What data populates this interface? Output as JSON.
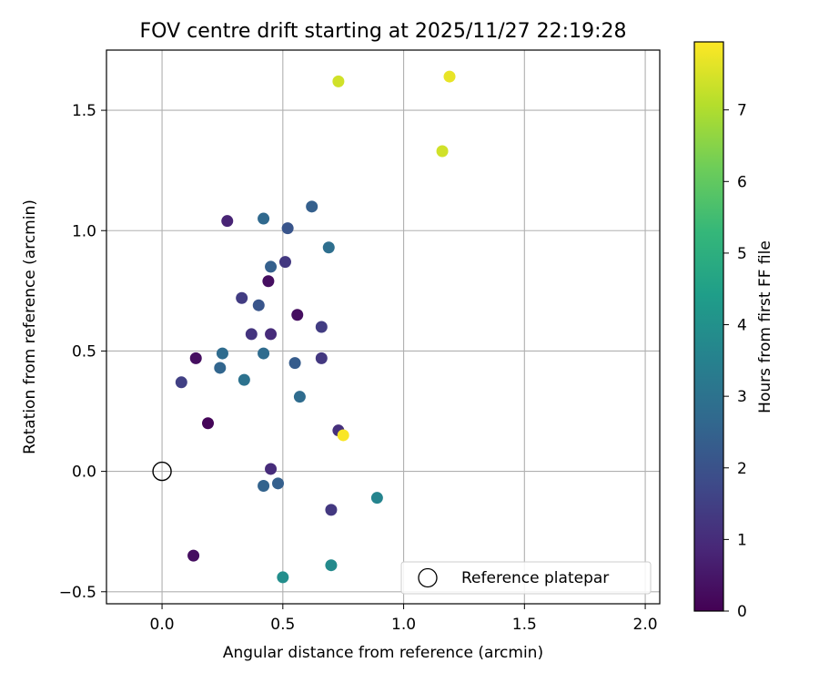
{
  "chart_data": {
    "type": "scatter",
    "title": "FOV centre drift starting at 2025/11/27 22:19:28",
    "xlabel": "Angular distance from reference (arcmin)",
    "ylabel": "Rotation from reference (arcmin)",
    "xlim": [
      -0.23,
      2.06
    ],
    "ylim": [
      -0.55,
      1.75
    ],
    "xticks": [
      0.0,
      0.5,
      1.0,
      1.5,
      2.0
    ],
    "xtick_labels": [
      "0.0",
      "0.5",
      "1.0",
      "1.5",
      "2.0"
    ],
    "yticks": [
      -0.5,
      0.0,
      0.5,
      1.0,
      1.5
    ],
    "ytick_labels": [
      "−0.5",
      "0.0",
      "0.5",
      "1.0",
      "1.5"
    ],
    "grid": true,
    "colorbar": {
      "label": "Hours from first FF file",
      "range": [
        0,
        7.95
      ],
      "ticks": [
        0,
        1,
        2,
        3,
        4,
        5,
        6,
        7
      ],
      "tick_labels": [
        "0",
        "1",
        "2",
        "3",
        "4",
        "5",
        "6",
        "7"
      ],
      "colormap": "viridis"
    },
    "legend": {
      "position": "lower-right",
      "entries": [
        {
          "label": "Reference platepar",
          "marker": "open-circle"
        }
      ]
    },
    "reference_point": {
      "x": 0.0,
      "y": 0.0
    },
    "points": [
      {
        "x": 0.73,
        "y": 1.62,
        "hours": 7.4
      },
      {
        "x": 1.19,
        "y": 1.64,
        "hours": 7.7
      },
      {
        "x": 1.16,
        "y": 1.33,
        "hours": 7.4
      },
      {
        "x": 0.27,
        "y": 1.04,
        "hours": 0.8
      },
      {
        "x": 0.42,
        "y": 1.05,
        "hours": 2.7
      },
      {
        "x": 0.52,
        "y": 1.01,
        "hours": 2.1
      },
      {
        "x": 0.62,
        "y": 1.1,
        "hours": 2.4
      },
      {
        "x": 0.69,
        "y": 0.93,
        "hours": 2.9
      },
      {
        "x": 0.45,
        "y": 0.85,
        "hours": 2.4
      },
      {
        "x": 0.51,
        "y": 0.87,
        "hours": 1.3
      },
      {
        "x": 0.33,
        "y": 0.72,
        "hours": 1.4
      },
      {
        "x": 0.4,
        "y": 0.69,
        "hours": 2.1
      },
      {
        "x": 0.44,
        "y": 0.79,
        "hours": 0.3
      },
      {
        "x": 0.56,
        "y": 0.65,
        "hours": 0.3
      },
      {
        "x": 0.66,
        "y": 0.6,
        "hours": 1.4
      },
      {
        "x": 0.37,
        "y": 0.57,
        "hours": 1.2
      },
      {
        "x": 0.45,
        "y": 0.57,
        "hours": 1.0
      },
      {
        "x": 0.14,
        "y": 0.47,
        "hours": 0.3
      },
      {
        "x": 0.25,
        "y": 0.49,
        "hours": 2.8
      },
      {
        "x": 0.42,
        "y": 0.49,
        "hours": 2.8
      },
      {
        "x": 0.55,
        "y": 0.45,
        "hours": 2.3
      },
      {
        "x": 0.66,
        "y": 0.47,
        "hours": 1.3
      },
      {
        "x": 0.08,
        "y": 0.37,
        "hours": 1.5
      },
      {
        "x": 0.24,
        "y": 0.43,
        "hours": 2.6
      },
      {
        "x": 0.34,
        "y": 0.38,
        "hours": 3.0
      },
      {
        "x": 0.57,
        "y": 0.31,
        "hours": 2.8
      },
      {
        "x": 0.19,
        "y": 0.2,
        "hours": 0.1
      },
      {
        "x": 0.73,
        "y": 0.17,
        "hours": 1.1
      },
      {
        "x": 0.75,
        "y": 0.15,
        "hours": 7.9
      },
      {
        "x": 0.45,
        "y": 0.01,
        "hours": 1.0
      },
      {
        "x": 0.48,
        "y": -0.05,
        "hours": 2.4
      },
      {
        "x": 0.42,
        "y": -0.06,
        "hours": 2.5
      },
      {
        "x": 0.7,
        "y": -0.16,
        "hours": 1.3
      },
      {
        "x": 0.89,
        "y": -0.11,
        "hours": 3.6
      },
      {
        "x": 0.13,
        "y": -0.35,
        "hours": 0.3
      },
      {
        "x": 0.7,
        "y": -0.39,
        "hours": 3.8
      },
      {
        "x": 0.5,
        "y": -0.44,
        "hours": 3.9
      }
    ]
  }
}
